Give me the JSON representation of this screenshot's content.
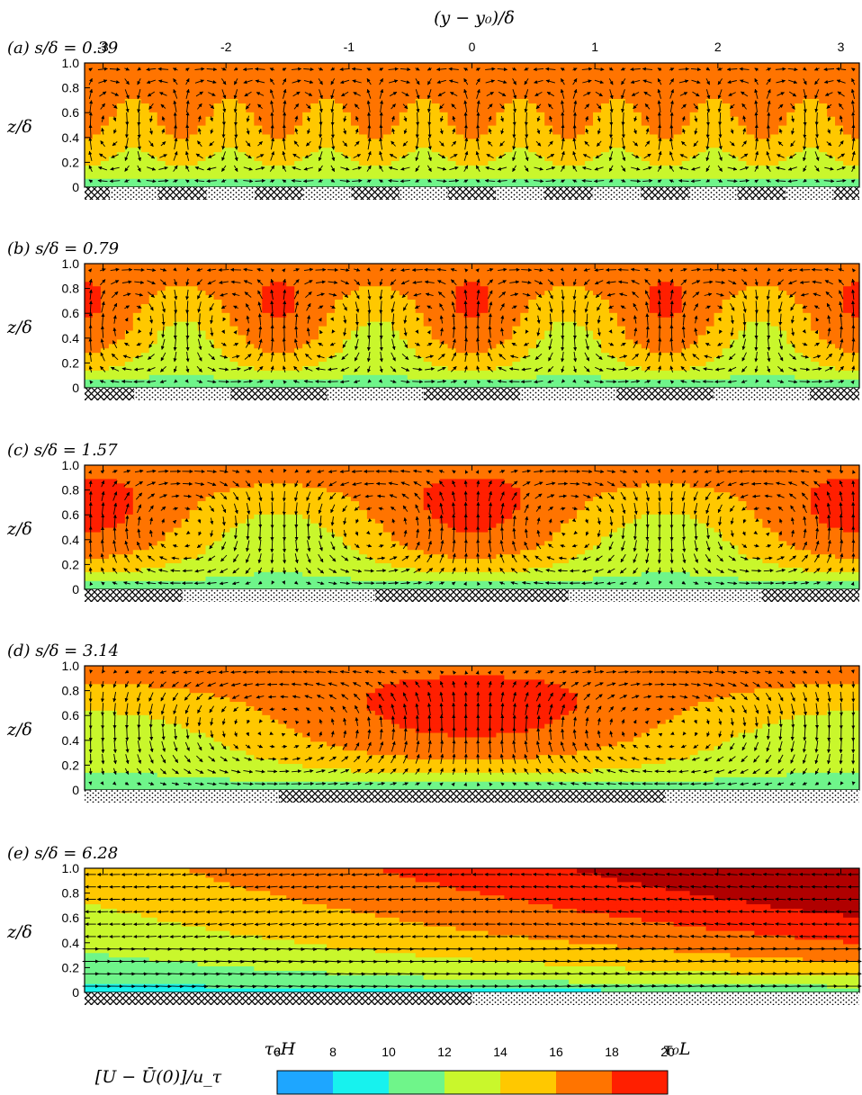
{
  "chart_data": {
    "type": "contour",
    "x_axis": {
      "label": "(y − y₀)/δ",
      "range": [
        -3.15,
        3.15
      ],
      "ticks": [
        -3,
        -2,
        -1,
        0,
        1,
        2,
        3
      ],
      "tick_labels": [
        "-3",
        "-2",
        "-1",
        "0",
        "1",
        "2",
        "3"
      ]
    },
    "y_axis": {
      "label": "z/δ",
      "range": [
        0,
        1.0
      ],
      "ticks": [
        0,
        0.2,
        0.4,
        0.6,
        0.8,
        1.0
      ],
      "tick_labels": [
        "0",
        "0.2",
        "0.4",
        "0.6",
        "0.8",
        "1.0"
      ]
    },
    "panels": [
      {
        "label": "(a) s/δ = 0.39",
        "s_over_delta": 0.39,
        "wavelength": 0.785
      },
      {
        "label": "(b) s/δ = 0.79",
        "s_over_delta": 0.79,
        "wavelength": 1.57
      },
      {
        "label": "(c) s/δ = 1.57",
        "s_over_delta": 1.57,
        "wavelength": 3.14
      },
      {
        "label": "(d) s/δ = 3.14",
        "s_over_delta": 3.14,
        "wavelength": 6.28
      },
      {
        "label": "(e) s/δ = 6.28",
        "s_over_delta": 6.28,
        "wavelength": 12.56
      }
    ],
    "surface_labels": [
      "τ₀H",
      "τ₀L"
    ],
    "colorbar": {
      "label": "[U − Ū(0)]/u_τ",
      "ticks": [
        "6",
        "8",
        "10",
        "12",
        "14",
        "16",
        "18",
        "20"
      ],
      "levels": [
        6,
        8,
        10,
        12,
        14,
        16,
        18,
        20
      ],
      "colors": [
        "#1ea6ff",
        "#17f2ee",
        "#6ff58a",
        "#c9f72c",
        "#ffc800",
        "#ff7400",
        "#ff1f00"
      ]
    },
    "extra_colors": {
      "below_min": "#1664f0",
      "above_max": "#b00000"
    }
  }
}
